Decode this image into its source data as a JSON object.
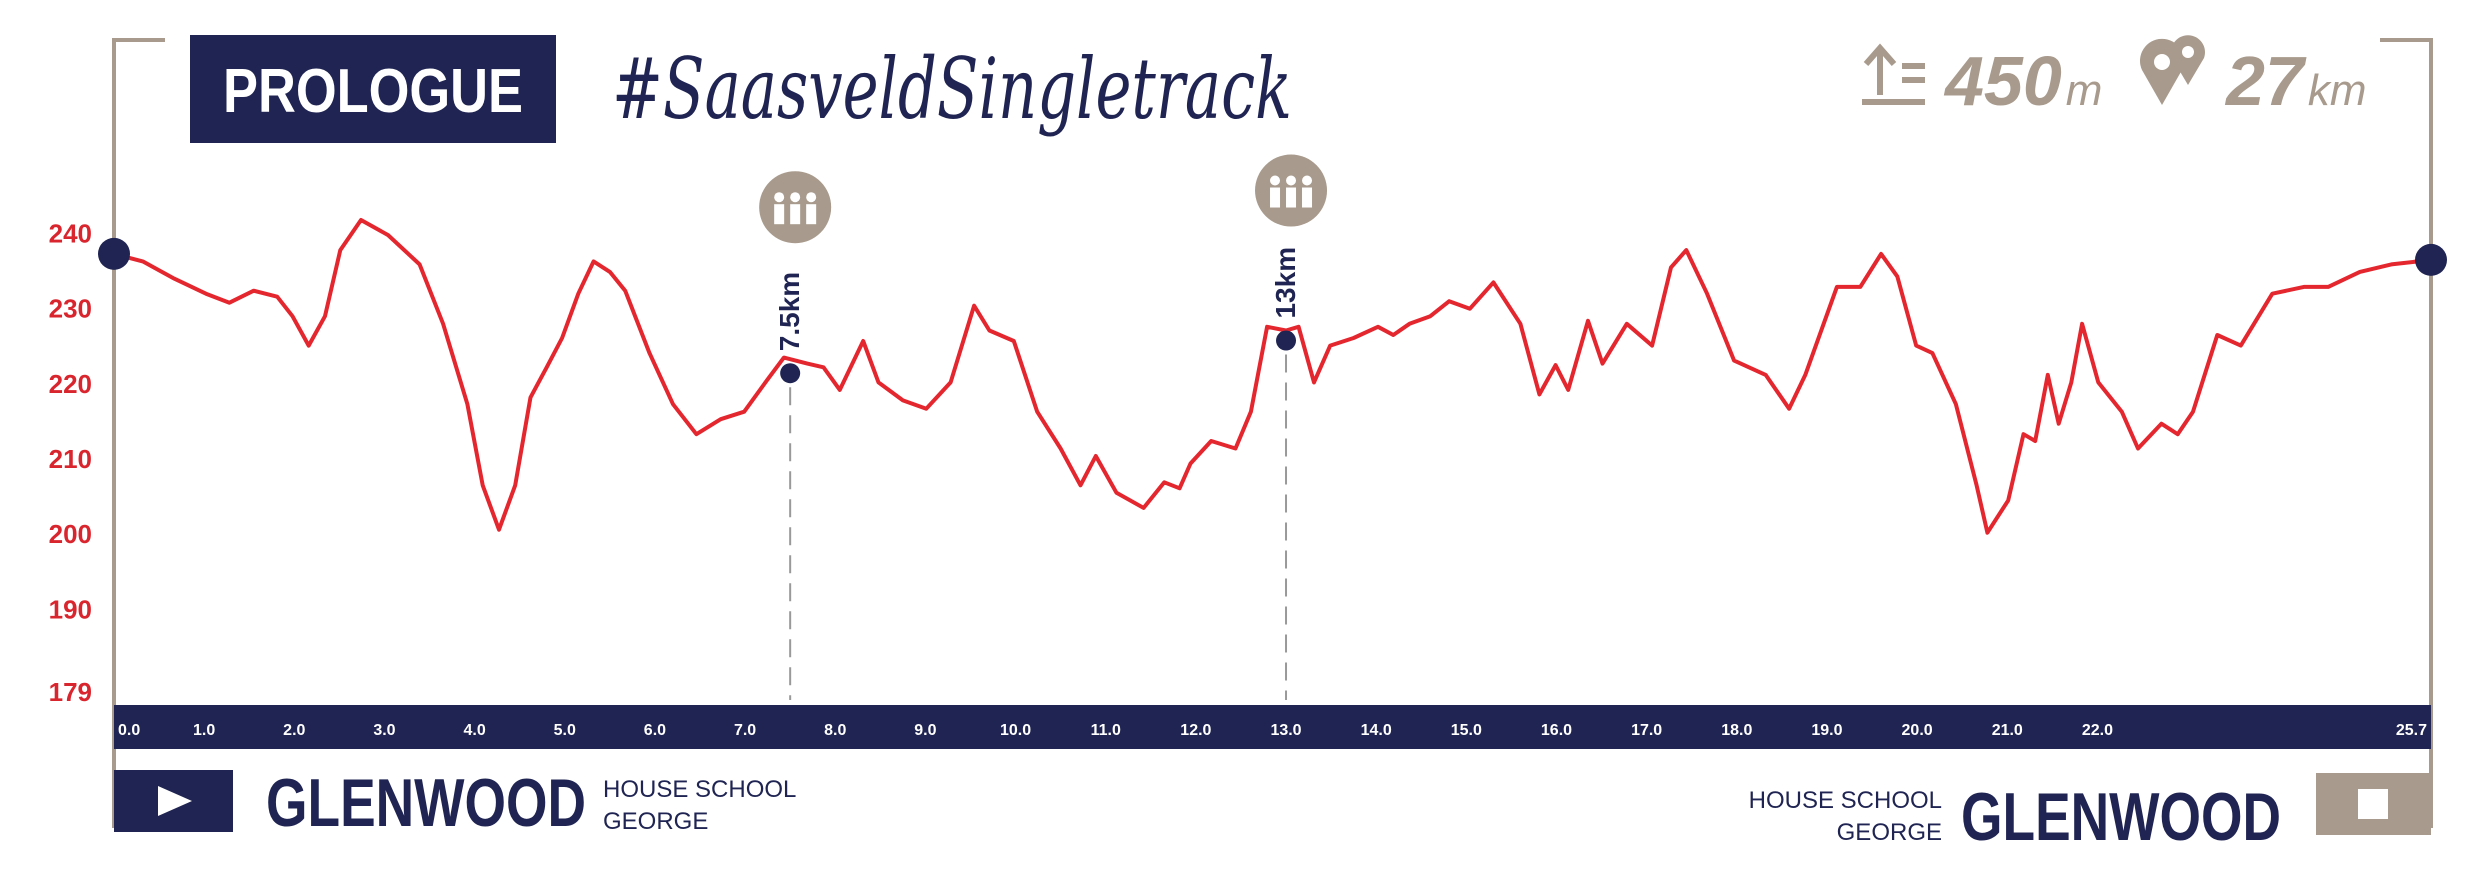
{
  "header": {
    "title": "PROLOGUE",
    "hashtag": "#SaasveldSingletrack",
    "climb": 450,
    "climb_unit": "m",
    "distance": 27,
    "distance_unit": "km"
  },
  "chart_data": {
    "type": "line",
    "color": "#e4262f",
    "x": [
      0,
      0.32,
      0.67,
      1.02,
      1.28,
      1.55,
      1.81,
      1.98,
      2.16,
      2.34,
      2.51,
      2.74,
      3.04,
      3.39,
      3.65,
      3.92,
      4.09,
      4.27,
      4.45,
      4.62,
      4.8,
      4.97,
      5.15,
      5.32,
      5.5,
      5.67,
      5.94,
      6.2,
      6.46,
      6.73,
      6.99,
      7.25,
      7.43,
      7.69,
      7.87,
      8.05,
      8.31,
      8.48,
      8.75,
      9.01,
      9.28,
      9.54,
      9.71,
      9.98,
      10.24,
      10.5,
      10.72,
      10.89,
      11.12,
      11.42,
      11.65,
      11.82,
      11.94,
      12.17,
      12.44,
      12.61,
      12.79,
      13.0,
      13.14,
      13.31,
      13.49,
      13.75,
      14.02,
      14.19,
      14.37,
      14.6,
      14.81,
      15.04,
      15.3,
      15.6,
      15.81,
      15.99,
      16.13,
      16.35,
      16.51,
      16.78,
      17.06,
      17.27,
      17.44,
      17.67,
      17.97,
      18.32,
      18.58,
      18.76,
      19.11,
      19.37,
      19.6,
      19.78,
      19.99,
      20.17,
      20.43,
      20.66,
      20.78,
      21.01,
      21.18,
      21.31,
      21.45,
      21.57,
      21.71,
      21.83,
      22.01,
      22.27,
      22.45,
      22.71,
      22.89,
      23.06,
      23.33,
      23.59,
      23.94,
      24.29,
      24.56,
      24.91,
      25.26,
      25.7
    ],
    "values": [
      237.3,
      236.3,
      234,
      232,
      230.8,
      232.4,
      231.6,
      229,
      225.1,
      229,
      237.8,
      241.8,
      239.8,
      235.9,
      228,
      217.3,
      206.5,
      200.6,
      206.5,
      218.2,
      222.2,
      226.1,
      232,
      236.3,
      234.9,
      232.4,
      224.1,
      217.3,
      213.3,
      215.3,
      216.3,
      220.6,
      223.5,
      222.7,
      222.2,
      219.2,
      225.7,
      220.2,
      217.8,
      216.7,
      220.2,
      230.4,
      227.1,
      225.7,
      216.3,
      211.4,
      206.5,
      210.4,
      205.5,
      203.5,
      206.9,
      206.1,
      209.4,
      212.4,
      211.4,
      216.3,
      227.6,
      227.1,
      227.6,
      220.2,
      225.1,
      226.1,
      227.6,
      226.5,
      228,
      229,
      231,
      230,
      233.5,
      228,
      218.6,
      222.5,
      219.2,
      228.4,
      222.7,
      228,
      225.1,
      235.5,
      237.8,
      232,
      223.1,
      221.2,
      216.7,
      221.2,
      232.9,
      232.9,
      237.3,
      234.3,
      225.1,
      224.1,
      217.3,
      206.5,
      200.2,
      204.5,
      213.3,
      212.4,
      221.2,
      214.7,
      220.2,
      228,
      220.2,
      216.3,
      211.4,
      214.7,
      213.3,
      216.3,
      226.5,
      225.1,
      232,
      232.9,
      232.9,
      234.9,
      235.9,
      236.5
    ],
    "xlim": [
      0,
      25.7
    ],
    "ylim": [
      179,
      245
    ],
    "xticks": [
      {
        "value": 0,
        "label": "0.0"
      },
      {
        "value": 1,
        "label": "1.0"
      },
      {
        "value": 2,
        "label": "2.0"
      },
      {
        "value": 3,
        "label": "3.0"
      },
      {
        "value": 4,
        "label": "4.0"
      },
      {
        "value": 5,
        "label": "5.0"
      },
      {
        "value": 6,
        "label": "6.0"
      },
      {
        "value": 7,
        "label": "7.0"
      },
      {
        "value": 8,
        "label": "8.0"
      },
      {
        "value": 9,
        "label": "9.0"
      },
      {
        "value": 10,
        "label": "10.0"
      },
      {
        "value": 11,
        "label": "11.0"
      },
      {
        "value": 12,
        "label": "12.0"
      },
      {
        "value": 13,
        "label": "13.0"
      },
      {
        "value": 14,
        "label": "14.0"
      },
      {
        "value": 15,
        "label": "15.0"
      },
      {
        "value": 16,
        "label": "16.0"
      },
      {
        "value": 17,
        "label": "17.0"
      },
      {
        "value": 18,
        "label": "18.0"
      },
      {
        "value": 19,
        "label": "19.0"
      },
      {
        "value": 20,
        "label": "20.0"
      },
      {
        "value": 21,
        "label": "21.0"
      },
      {
        "value": 22,
        "label": "22.0"
      },
      25.7
    ],
    "yticks": [
      179,
      190,
      200,
      210,
      220,
      230,
      240
    ],
    "markers": [
      {
        "x": 7.5,
        "label": "7.5km"
      },
      {
        "x": 13,
        "label": "13km"
      }
    ]
  },
  "footer": {
    "start": {
      "name": "GLENWOOD",
      "line1": "HOUSE SCHOOL",
      "line2": "GEORGE"
    },
    "finish": {
      "name": "GLENWOOD",
      "line1": "HOUSE SCHOOL",
      "line2": "GEORGE"
    }
  }
}
